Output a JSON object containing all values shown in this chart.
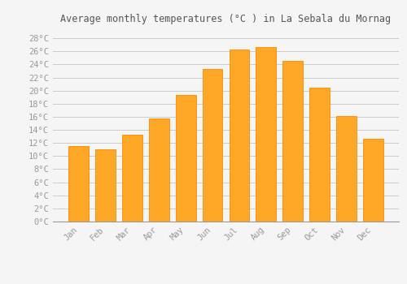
{
  "title": "Average monthly temperatures (°C ) in La Sebala du Mornag",
  "months": [
    "Jan",
    "Feb",
    "Mar",
    "Apr",
    "May",
    "Jun",
    "Jul",
    "Aug",
    "Sep",
    "Oct",
    "Nov",
    "Dec"
  ],
  "temperatures": [
    11.5,
    11.0,
    13.3,
    15.7,
    19.3,
    23.3,
    26.3,
    26.7,
    24.6,
    20.4,
    16.1,
    12.6
  ],
  "bar_color_main": "#FFA726",
  "bar_color_edge": "#FB8C00",
  "yticks": [
    0,
    2,
    4,
    6,
    8,
    10,
    12,
    14,
    16,
    18,
    20,
    22,
    24,
    26,
    28
  ],
  "ytick_labels": [
    "0°C",
    "2°C",
    "4°C",
    "6°C",
    "8°C",
    "10°C",
    "12°C",
    "14°C",
    "16°C",
    "18°C",
    "20°C",
    "22°C",
    "24°C",
    "26°C",
    "28°C"
  ],
  "ylim": [
    0,
    29.5
  ],
  "grid_color": "#cccccc",
  "background_color": "#f5f5f5",
  "font_color": "#999999",
  "title_fontsize": 8.5,
  "tick_fontsize": 7.5
}
